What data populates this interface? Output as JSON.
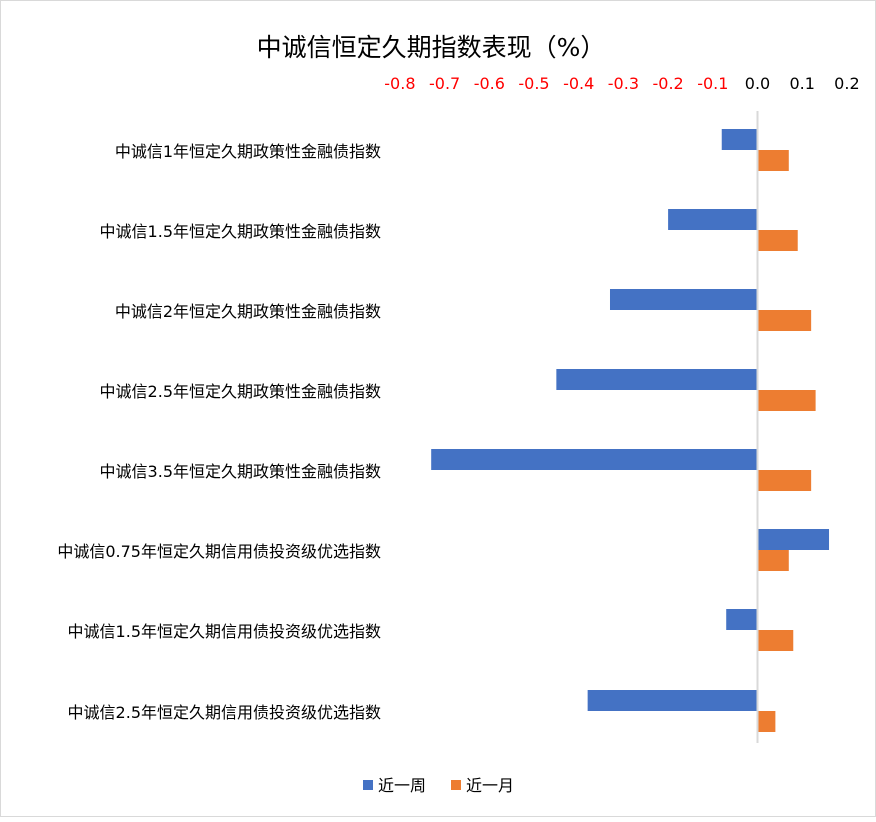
{
  "chart_data": {
    "type": "bar",
    "orientation": "horizontal",
    "title": "中诚信恒定久期指数表现（%）",
    "xlim": [
      -0.8,
      0.2
    ],
    "x_ticks": [
      "-0.8",
      "-0.7",
      "-0.6",
      "-0.5",
      "-0.4",
      "-0.3",
      "-0.2",
      "-0.1",
      "0.0",
      "0.1",
      "0.2"
    ],
    "x_tick_values": [
      -0.8,
      -0.7,
      -0.6,
      -0.5,
      -0.4,
      -0.3,
      -0.2,
      -0.1,
      0.0,
      0.1,
      0.2
    ],
    "negative_tick_color": "#FF0000",
    "positive_tick_color": "#000000",
    "axis_position": "top",
    "grid": false,
    "legend_position": "bottom",
    "categories": [
      "中诚信1年恒定久期政策性金融债指数",
      "中诚信1.5年恒定久期政策性金融债指数",
      "中诚信2年恒定久期政策性金融债指数",
      "中诚信2.5年恒定久期政策性金融债指数",
      "中诚信3.5年恒定久期政策性金融债指数",
      "中诚信0.75年恒定久期信用债投资级优选指数",
      "中诚信1.5年恒定久期信用债投资级优选指数",
      "中诚信2.5年恒定久期信用债投资级优选指数"
    ],
    "series": [
      {
        "name": "近一周",
        "color": "#4472C4",
        "values": [
          -0.08,
          -0.2,
          -0.33,
          -0.45,
          -0.73,
          0.16,
          -0.07,
          -0.38
        ]
      },
      {
        "name": "近一月",
        "color": "#ED7D31",
        "values": [
          0.07,
          0.09,
          0.12,
          0.13,
          0.12,
          0.07,
          0.08,
          0.04
        ]
      }
    ]
  }
}
